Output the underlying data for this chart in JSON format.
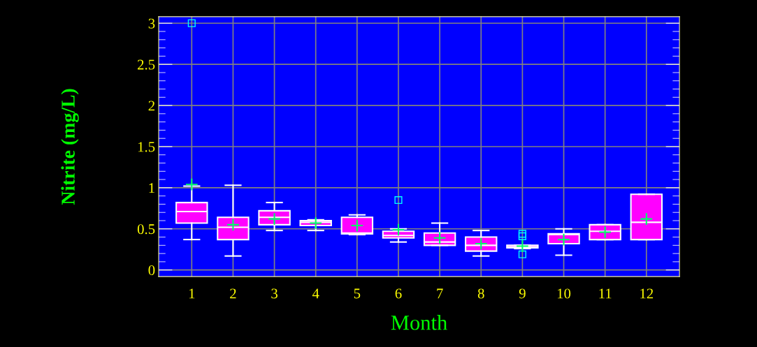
{
  "chart_data": {
    "type": "box",
    "xlabel": "Month",
    "ylabel": "Nitrite (mg/L)",
    "categories": [
      "1",
      "2",
      "3",
      "4",
      "5",
      "6",
      "7",
      "8",
      "9",
      "10",
      "11",
      "12"
    ],
    "color": "#ff00ff",
    "boxes": [
      {
        "low": 0.37,
        "q1": 0.57,
        "median": 0.71,
        "q3": 0.82,
        "high": 1.02,
        "mean": 1.04,
        "outliers": [
          3.0
        ]
      },
      {
        "low": 0.17,
        "q1": 0.37,
        "median": 0.52,
        "q3": 0.64,
        "high": 1.03,
        "mean": 0.55
      },
      {
        "low": 0.48,
        "q1": 0.55,
        "median": 0.64,
        "q3": 0.72,
        "high": 0.82,
        "mean": 0.62
      },
      {
        "low": 0.48,
        "q1": 0.54,
        "median": 0.58,
        "q3": 0.6,
        "high": 0.61,
        "mean": 0.57
      },
      {
        "low": 0.43,
        "q1": 0.44,
        "median": 0.45,
        "q3": 0.64,
        "high": 0.67,
        "mean": 0.54
      },
      {
        "low": 0.34,
        "q1": 0.39,
        "median": 0.42,
        "q3": 0.47,
        "high": 0.5,
        "mean": 0.49,
        "outliers": [
          0.85
        ]
      },
      {
        "low": 0.3,
        "q1": 0.3,
        "median": 0.34,
        "q3": 0.45,
        "high": 0.57,
        "mean": 0.39
      },
      {
        "low": 0.17,
        "q1": 0.23,
        "median": 0.3,
        "q3": 0.4,
        "high": 0.48,
        "mean": 0.32
      },
      {
        "low": 0.26,
        "q1": 0.27,
        "median": 0.28,
        "q3": 0.3,
        "high": 0.3,
        "mean": 0.29,
        "outliers": [
          0.44,
          0.41,
          0.19
        ]
      },
      {
        "low": 0.18,
        "q1": 0.32,
        "median": 0.43,
        "q3": 0.44,
        "high": 0.5,
        "mean": 0.37
      },
      {
        "low": 0.37,
        "q1": 0.37,
        "median": 0.47,
        "q3": 0.55,
        "high": 0.55,
        "mean": 0.46
      },
      {
        "low": 0.37,
        "q1": 0.37,
        "median": 0.58,
        "q3": 0.92,
        "high": 0.92,
        "mean": 0.62
      }
    ],
    "ylim": [
      -0.08,
      3.08
    ],
    "yticks": [
      0,
      0.5,
      1,
      1.5,
      2,
      2.5,
      3
    ],
    "grid": true
  }
}
